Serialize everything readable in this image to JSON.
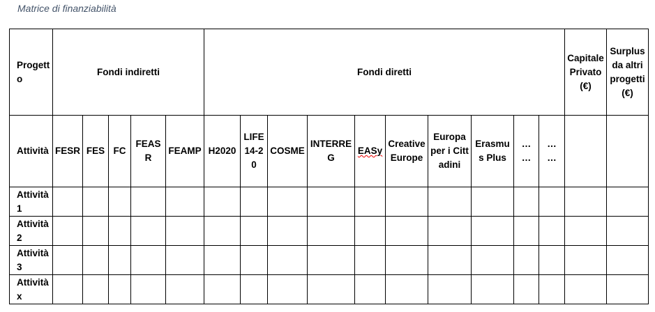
{
  "title": "Matrice di finanziabilità",
  "table": {
    "header1": {
      "progetto": "Progetto",
      "fondi_indiretti": "Fondi indiretti",
      "fondi_diretti": "Fondi diretti",
      "capitale_privato": "Capitale Privato (€)",
      "surplus": "Surplus da altri progetti (€)"
    },
    "header2": {
      "attivita": "Attività",
      "columns": [
        "FESR",
        "FES",
        "FC",
        "FEASR",
        "FEAMP",
        "H2020",
        "LIFE 14-20",
        "COSME",
        "INTERREG",
        "EASy",
        "Creative Europe",
        "Europa per i Cittadini",
        "Erasmus Plus",
        "… …",
        "… …",
        "",
        ""
      ]
    },
    "rows": [
      {
        "label": "Attività 1"
      },
      {
        "label": "Attività 2"
      },
      {
        "label": "Attività 3"
      },
      {
        "label": "Attività x"
      }
    ]
  }
}
